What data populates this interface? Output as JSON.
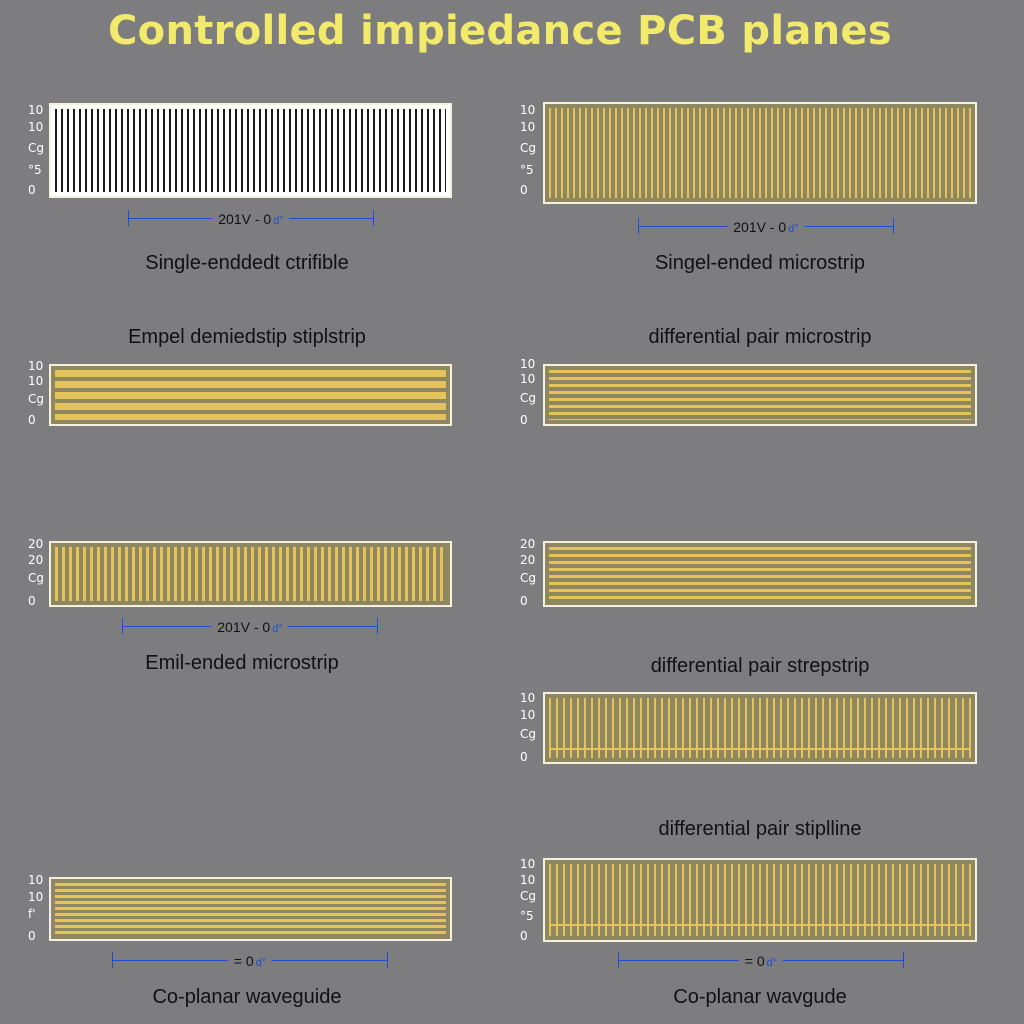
{
  "title": "Controlled impiedance PCB planes",
  "dimension_label": "201V  -  0",
  "dimension_label_short": "=   0",
  "dimension_symbol": "d°",
  "panels": [
    {
      "caption": "Single-enddedt ctrifible",
      "ticks": [
        "10",
        "10",
        "Cg",
        "°5",
        "0"
      ],
      "pattern": "vertical-bw",
      "has_dimension": true
    },
    {
      "caption": "Singel-ended microstrip",
      "ticks": [
        "10",
        "10",
        "Cg",
        "°5",
        "0"
      ],
      "pattern": "vertical-gold",
      "has_dimension": true
    },
    {
      "caption": "Empel demiedstip stiplstrip",
      "ticks": [
        "10",
        "10",
        "Cg",
        "0"
      ],
      "pattern": "horizontal-wide",
      "has_dimension": false
    },
    {
      "caption": "differential pair microstrip",
      "ticks": [
        "10",
        "10",
        "Cg",
        "0"
      ],
      "pattern": "horizontal-thin",
      "has_dimension": false
    },
    {
      "caption": "Emil-ended microstrip",
      "ticks": [
        "20",
        "20",
        "Cg",
        "0"
      ],
      "pattern": "vertical-gold",
      "has_dimension": true
    },
    {
      "caption": "differential pair strepstrip",
      "ticks": [
        "20",
        "20",
        "Cg",
        "0"
      ],
      "pattern": "horizontal-thin",
      "has_dimension": false
    },
    {
      "caption": "differential pair stiplline",
      "ticks": [
        "10",
        "10",
        "Cg",
        "0"
      ],
      "pattern": "vertical-framed",
      "has_dimension": false
    },
    {
      "caption": "Co-planar waveguide",
      "ticks": [
        "10",
        "10",
        "f'",
        "0"
      ],
      "pattern": "horizontal-thin",
      "has_dimension": true
    },
    {
      "caption": "Co-planar wavgude",
      "ticks": [
        "10",
        "10",
        "Cg",
        "°5",
        "0"
      ],
      "pattern": "vertical-framed",
      "has_dimension": true
    }
  ],
  "colors": {
    "background": "#7d7d80",
    "title": "#f2ea6a",
    "gold": "#e3c35a",
    "olive": "#8e8760",
    "frame": "#f4f2dc",
    "dimension": "#1f4fd0"
  }
}
